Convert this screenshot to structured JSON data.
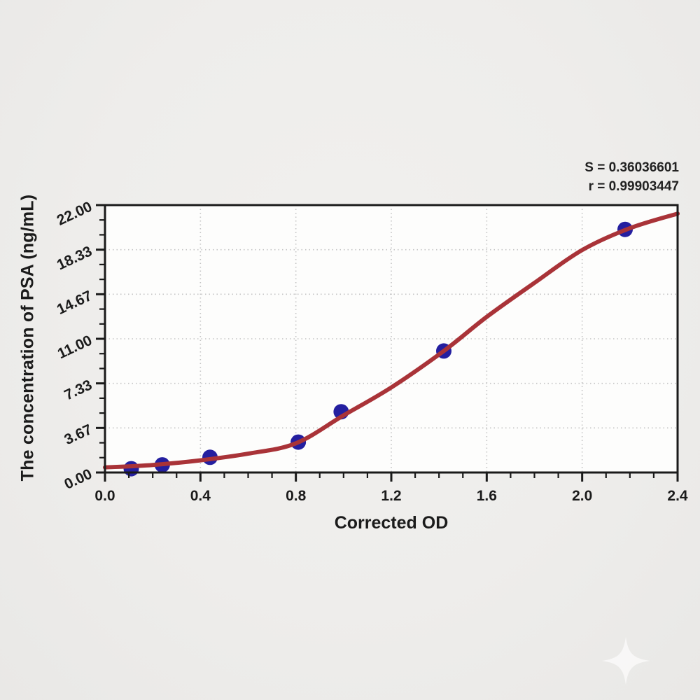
{
  "annotation": {
    "line1": "S = 0.36036601",
    "line2": "r = 0.99903447"
  },
  "chart_data": {
    "type": "scatter",
    "title": "",
    "xlabel": "Corrected OD",
    "ylabel": "The concentration of PSA (ng/mL)",
    "xlim": [
      0,
      2.4
    ],
    "ylim": [
      0,
      22
    ],
    "x_major_ticks": [
      0.0,
      0.4,
      0.8,
      1.2,
      1.6,
      2.0,
      2.4
    ],
    "x_tick_labels": [
      "0.0",
      "0.4",
      "0.8",
      "1.2",
      "1.6",
      "2.0",
      "2.4"
    ],
    "x_minor_step": 0.1,
    "y_major_ticks": [
      0,
      3.6667,
      7.3333,
      11,
      14.6667,
      18.3333,
      22
    ],
    "y_tick_labels": [
      "0.00",
      "3.67",
      "7.33",
      "11.00",
      "14.67",
      "18.33",
      "22.00"
    ],
    "y_minor_divisions_per_major": 3,
    "grid": "dotted-at-major-ticks",
    "legend": "none",
    "series": [
      {
        "name": "standard-points",
        "type": "scatter",
        "x": [
          0.11,
          0.24,
          0.44,
          0.81,
          0.99,
          1.42,
          2.18
        ],
        "y": [
          0.31,
          0.63,
          1.25,
          2.5,
          5.0,
          10.0,
          20.0
        ]
      },
      {
        "name": "fitted-curve",
        "type": "line",
        "x": [
          0.0,
          0.2,
          0.4,
          0.6,
          0.8,
          1.0,
          1.2,
          1.42,
          1.6,
          1.8,
          2.0,
          2.2,
          2.4
        ],
        "y": [
          0.42,
          0.62,
          1.0,
          1.55,
          2.4,
          4.7,
          7.0,
          10.0,
          12.8,
          15.6,
          18.3,
          20.1,
          21.3
        ]
      }
    ],
    "stats": {
      "S": "0.36036601",
      "r": "0.99903447"
    },
    "colors": {
      "curve": "#a93338",
      "marker": "#241fa0",
      "axis": "#1a1a1a",
      "grid": "#c4c4c4",
      "plot_bg": "#fdfdfc",
      "page_bg": "#eeedeb",
      "text": "#1b1b1b"
    }
  }
}
